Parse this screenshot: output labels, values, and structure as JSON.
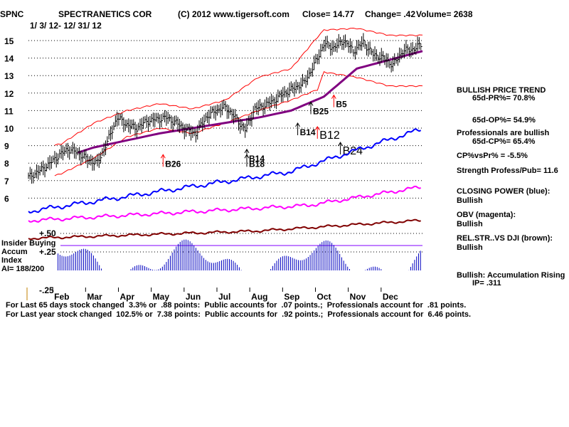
{
  "header": {
    "ticker": "SPNC",
    "company": "SPECTRANETICS COR",
    "copyright": "(C) 2012 www.tigersoft.com",
    "close": "Close=  14.77",
    "change": "Change= .42",
    "volume": "Volume= 2638",
    "daterange": "1/ 3/ 12- 12/ 31/ 12"
  },
  "panel_left": {
    "insider1": "Insider Buying",
    "accum": "Accum",
    "index": "Index",
    "ai": "AI= 188/200"
  },
  "right_panel": {
    "bullish_trend": "BULLISH PRICE TREND",
    "pr65": "65d-PR%= 70.8%",
    "op65": "65d-OP%= 54.9%",
    "pros_bullish": "Professionals are bullish",
    "cp65": "65d-CP%= 65.4%",
    "cpvspr": "CP%vsPr% = -5.5%",
    "strength": "Strength Profess/Pub= 11.6",
    "closing_power": "CLOSING POWER (blue):",
    "cp_bullish": "Bullish",
    "obv": "OBV (magenta):",
    "obv_bullish": "Bullish",
    "relstr": "REL.STR..VS DJI (brown):",
    "relstr_bullish": "Bullish",
    "accum_rising": "Bullish: Accumulation Rising",
    "ip": "IP=  .311"
  },
  "footer": {
    "line1": "For Last 65 days stock changed  3.3% or  .88 points:  Public accounts for  .07 points.;  Professionals account for  .81 points.",
    "line2": "For Last year stock changed  102.5% or  7.38 points:  Public accounts for  .92 points.;  Professionals account for  6.46 points."
  },
  "colors": {
    "price_bars": "#000000",
    "bands": "#ff0000",
    "ma": "#800080",
    "closing_power": "#0000ff",
    "obv": "#ff00ff",
    "relstr": "#800000",
    "accum": "#0000c0",
    "signal": "#ff0000"
  },
  "chart_data": {
    "type": "line",
    "title": "SPECTRANETICS COR (SPNC) daily prices 1/3/12 - 12/31/12",
    "y_ticks": [
      "15",
      "14",
      "13",
      "12",
      "11",
      "10",
      "9",
      "8",
      "7",
      "6"
    ],
    "ylim": [
      6,
      15.5
    ],
    "months": [
      "Feb",
      "Mar",
      "Apr",
      "May",
      "Jun",
      "Jul",
      "Aug",
      "Sep",
      "Oct",
      "Nov",
      "Dec"
    ],
    "series": [
      {
        "name": "Price (close)",
        "x": [
          0,
          0.3,
          0.6,
          0.9,
          1.2,
          1.5,
          1.8,
          2.1,
          2.4,
          2.7,
          3.0,
          3.3,
          3.6,
          3.9,
          4.2,
          4.5,
          4.8,
          5.1,
          5.4,
          5.7,
          6.0,
          6.3,
          6.6,
          6.9,
          7.2,
          7.5,
          7.8,
          8.1,
          8.4,
          8.7,
          9.0,
          9.3,
          9.6,
          9.9,
          10.2,
          10.5,
          10.8,
          11.1,
          11.4,
          11.7,
          12.0
        ],
        "values": [
          7.2,
          7.5,
          7.9,
          8.4,
          8.8,
          8.6,
          8.2,
          8.0,
          9.2,
          10.6,
          10.2,
          10.0,
          10.4,
          10.5,
          10.6,
          10.3,
          9.9,
          9.7,
          10.6,
          11.0,
          11.2,
          10.6,
          9.9,
          11.1,
          11.3,
          11.6,
          12.0,
          12.3,
          12.6,
          13.6,
          14.8,
          14.6,
          15.0,
          14.4,
          14.9,
          14.2,
          14.0,
          13.6,
          14.4,
          14.5,
          14.8
        ]
      },
      {
        "name": "50-day MA",
        "x": [
          1.5,
          2,
          3,
          4,
          5,
          6,
          7,
          8,
          9,
          10,
          11,
          12
        ],
        "values": [
          8.6,
          8.9,
          9.3,
          9.7,
          10.0,
          10.3,
          10.6,
          11.0,
          11.8,
          13.4,
          13.9,
          14.4
        ]
      },
      {
        "name": "Upper band",
        "x": [
          0,
          1,
          2,
          3,
          4,
          5,
          6,
          7,
          8,
          8.8,
          9,
          10,
          11,
          12
        ],
        "values": [
          8.7,
          9.1,
          10.3,
          11.0,
          11.4,
          11.1,
          11.6,
          12.9,
          13.4,
          15.2,
          15.6,
          15.7,
          15.3,
          15.3
        ]
      },
      {
        "name": "Lower band",
        "x": [
          0,
          1,
          2,
          3,
          4,
          5,
          6,
          7,
          8,
          8.8,
          9,
          10,
          11,
          12
        ],
        "values": [
          6.8,
          7.4,
          8.3,
          9.5,
          10.0,
          9.7,
          10.3,
          11.0,
          11.6,
          12.2,
          13.2,
          12.9,
          12.4,
          12.4
        ]
      }
    ],
    "signals": [
      {
        "label": "B26",
        "x": 4.1,
        "y": 8.2
      },
      {
        "label": "B14",
        "x": 6.65,
        "y": 8.5
      },
      {
        "label": "B18",
        "x": 6.65,
        "y": 8.2
      },
      {
        "label": "B14",
        "x": 8.2,
        "y": 10.0
      },
      {
        "label": "B12",
        "x": 8.8,
        "y": 9.8
      },
      {
        "label": "B25",
        "x": 8.6,
        "y": 11.2
      },
      {
        "label": "B5",
        "x": 9.3,
        "y": 11.6
      },
      {
        "label": "B24",
        "x": 9.5,
        "y": 8.9
      }
    ],
    "accum_ticks": [
      "+.50",
      "+.25",
      "-.25"
    ]
  }
}
